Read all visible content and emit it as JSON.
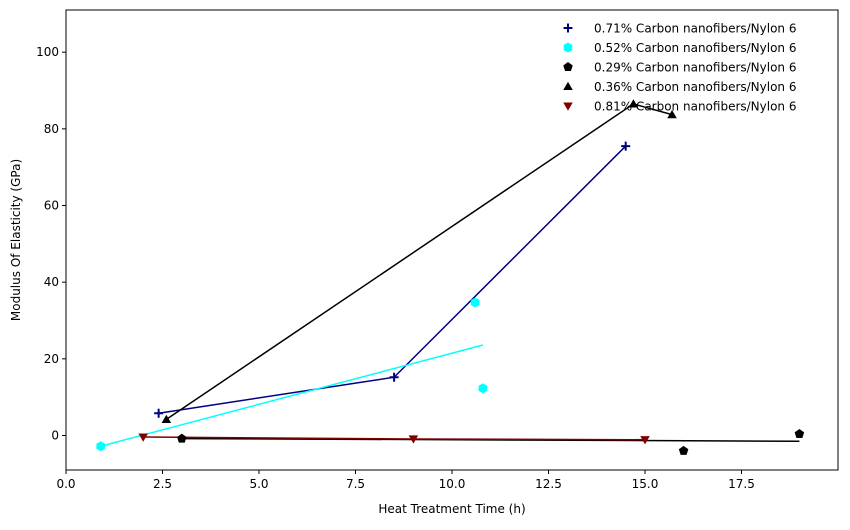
{
  "chart_data": {
    "type": "scatter",
    "title": "",
    "xlabel": "Heat Treatment Time (h)",
    "ylabel": "Modulus Of Elasticity (GPa)",
    "xlim": [
      0,
      20
    ],
    "ylim": [
      -9,
      111
    ],
    "x_ticks": [
      0,
      2.5,
      5,
      7.5,
      10,
      12.5,
      15,
      17.5
    ],
    "x_tick_labels": [
      "0.0",
      "2.5",
      "5.0",
      "7.5",
      "10.0",
      "12.5",
      "15.0",
      "17.5"
    ],
    "y_ticks": [
      0,
      20,
      40,
      60,
      80,
      100
    ],
    "y_tick_labels": [
      "0",
      "20",
      "40",
      "60",
      "80",
      "100"
    ],
    "grid": false,
    "legend_position": "top-right",
    "series": [
      {
        "name": "0.71% Carbon nanofibers/Nylon 6",
        "color": "#000080",
        "marker": "plus",
        "points": [
          [
            2.4,
            5.8
          ],
          [
            8.5,
            15.2
          ],
          [
            14.5,
            75.5
          ]
        ],
        "line": [
          [
            2.4,
            5.8
          ],
          [
            8.5,
            15.2
          ],
          [
            14.5,
            75.5
          ]
        ]
      },
      {
        "name": "0.52% Carbon nanofibers/Nylon 6",
        "color": "#00ffff",
        "marker": "hexagon",
        "points": [
          [
            0.9,
            -2.8
          ],
          [
            10.6,
            34.7
          ],
          [
            10.8,
            12.3
          ]
        ],
        "line": [
          [
            0.9,
            -2.8
          ],
          [
            10.8,
            23.6
          ]
        ]
      },
      {
        "name": "0.29% Carbon nanofibers/Nylon 6",
        "color": "#000000",
        "marker": "pentagon",
        "points": [
          [
            3.0,
            -0.8
          ],
          [
            16.0,
            -4.0
          ],
          [
            19.0,
            0.4
          ]
        ],
        "line": [
          [
            3.0,
            -0.8
          ],
          [
            19.0,
            -1.5
          ]
        ]
      },
      {
        "name": "0.36% Carbon nanofibers/Nylon 6",
        "color": "#000000",
        "marker": "triangle-up",
        "points": [
          [
            2.6,
            4.2
          ],
          [
            14.7,
            86.5
          ],
          [
            15.7,
            83.7
          ]
        ],
        "line": [
          [
            2.6,
            4.2
          ],
          [
            14.7,
            86.5
          ],
          [
            15.7,
            83.7
          ]
        ]
      },
      {
        "name": "0.81% Carbon nanofibers/Nylon 6",
        "color": "#800000",
        "marker": "triangle-down",
        "points": [
          [
            2.0,
            -0.4
          ],
          [
            9.0,
            -0.9
          ],
          [
            15.0,
            -1.1
          ]
        ],
        "line": [
          [
            2.0,
            -0.4
          ],
          [
            9.0,
            -0.9
          ],
          [
            15.0,
            -1.1
          ]
        ]
      }
    ]
  }
}
